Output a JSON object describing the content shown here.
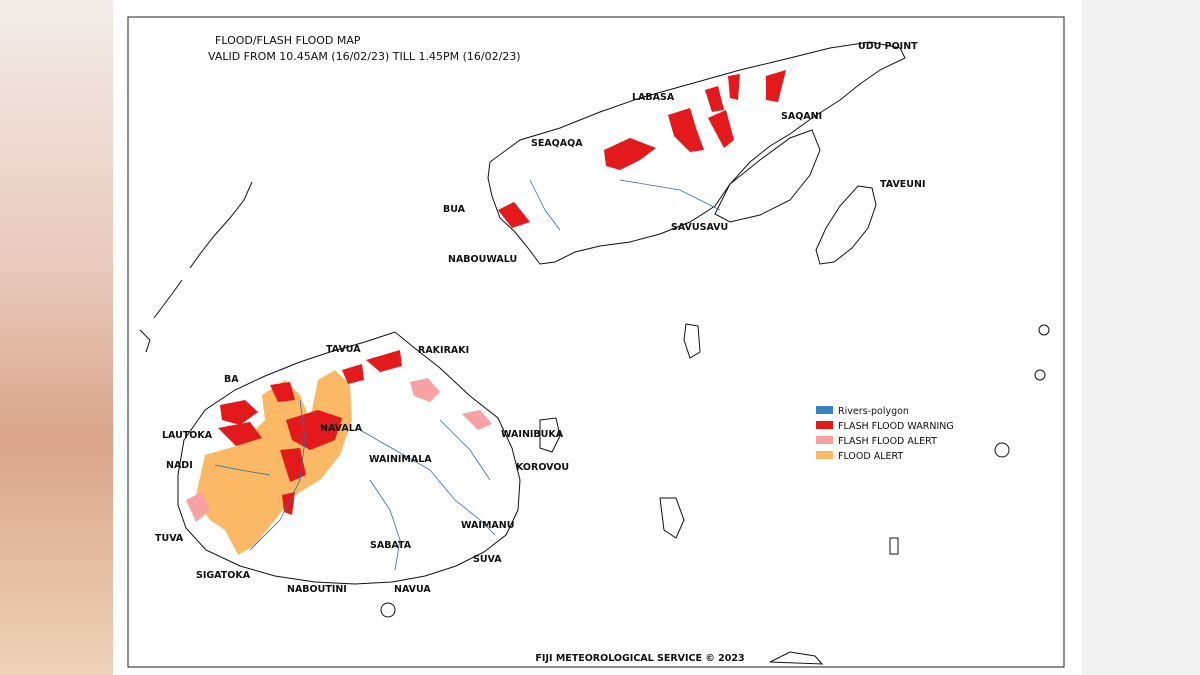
{
  "title": "FLOOD/FLASH FLOOD MAP",
  "validity": "VALID FROM 10.45AM (16/02/23) TILL 1.45PM (16/02/23)",
  "footer": "FIJI METEOROLOGICAL SERVICE © 2023",
  "legend": [
    {
      "label": "Rivers-polygon",
      "color": "#3a7fc1"
    },
    {
      "label": "FLASH FLOOD WARNING",
      "color": "#e3191c"
    },
    {
      "label": "FLASH FLOOD ALERT",
      "color": "#f7a1a3"
    },
    {
      "label": "FLOOD ALERT",
      "color": "#fbb965"
    }
  ],
  "places": {
    "udu_point": "UDU POINT",
    "labasa": "LABASA",
    "saqani": "SAQANI",
    "seaqaqa": "SEAQAQA",
    "taveuni": "TAVEUNI",
    "bua": "BUA",
    "savusavu": "SAVUSAVU",
    "nabouwalu": "NABOUWALU",
    "tavua": "TAVUA",
    "rakiraki": "RAKIRAKI",
    "ba": "BA",
    "navala": "NAVALA",
    "lautoka": "LAUTOKA",
    "wainibuka": "WAINIBUKA",
    "nadi": "NADI",
    "wainimala": "WAINIMALA",
    "korovou": "KOROVOU",
    "waimanu": "WAIMANU",
    "tuva": "TUVA",
    "sabata": "SABATA",
    "suva": "SUVA",
    "sigatoka": "SIGATOKA",
    "naboutini": "NABOUTINI",
    "navua": "NAVUA"
  }
}
